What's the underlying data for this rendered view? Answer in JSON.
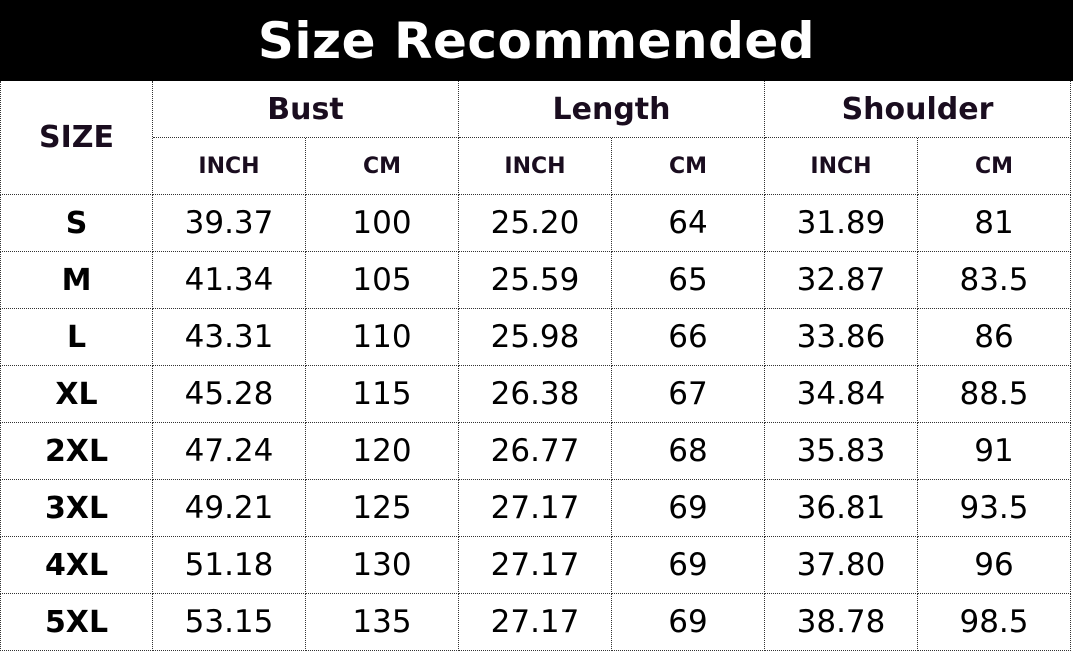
{
  "title": "Size Recommended",
  "size_header": "SIZE",
  "groups": [
    "Bust",
    "Length",
    "Shoulder"
  ],
  "units": [
    "INCH",
    "CM",
    "INCH",
    "CM",
    "INCH",
    "CM"
  ],
  "rows": [
    {
      "size": "S",
      "values": [
        "39.37",
        "100",
        "25.20",
        "64",
        "31.89",
        "81"
      ]
    },
    {
      "size": "M",
      "values": [
        "41.34",
        "105",
        "25.59",
        "65",
        "32.87",
        "83.5"
      ]
    },
    {
      "size": "L",
      "values": [
        "43.31",
        "110",
        "25.98",
        "66",
        "33.86",
        "86"
      ]
    },
    {
      "size": "XL",
      "values": [
        "45.28",
        "115",
        "26.38",
        "67",
        "34.84",
        "88.5"
      ]
    },
    {
      "size": "2XL",
      "values": [
        "47.24",
        "120",
        "26.77",
        "68",
        "35.83",
        "91"
      ]
    },
    {
      "size": "3XL",
      "values": [
        "49.21",
        "125",
        "27.17",
        "69",
        "36.81",
        "93.5"
      ]
    },
    {
      "size": "4XL",
      "values": [
        "51.18",
        "130",
        "27.17",
        "69",
        "37.80",
        "96"
      ]
    },
    {
      "size": "5XL",
      "values": [
        "53.15",
        "135",
        "27.17",
        "69",
        "38.78",
        "98.5"
      ]
    }
  ]
}
